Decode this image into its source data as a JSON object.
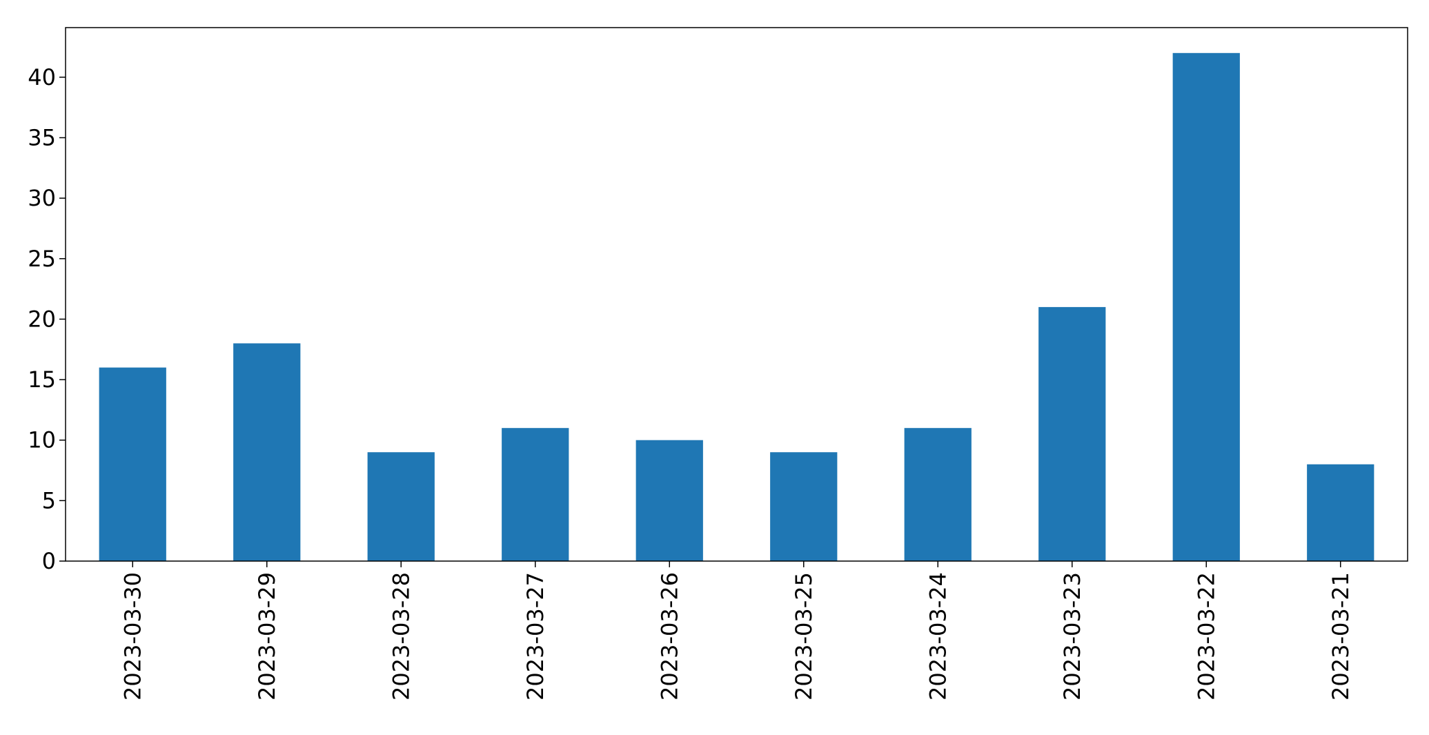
{
  "chart_data": {
    "type": "bar",
    "title": "",
    "xlabel": "",
    "ylabel": "",
    "categories": [
      "2023-03-30",
      "2023-03-29",
      "2023-03-28",
      "2023-03-27",
      "2023-03-26",
      "2023-03-25",
      "2023-03-24",
      "2023-03-23",
      "2023-03-22",
      "2023-03-21"
    ],
    "values": [
      16,
      18,
      9,
      11,
      10,
      9,
      11,
      21,
      42,
      8
    ],
    "ylim": [
      0,
      44.1
    ],
    "yticks": [
      0,
      5,
      10,
      15,
      20,
      25,
      30,
      35,
      40
    ],
    "grid": false,
    "legend": "none",
    "bar_color": "#1f77b4"
  }
}
